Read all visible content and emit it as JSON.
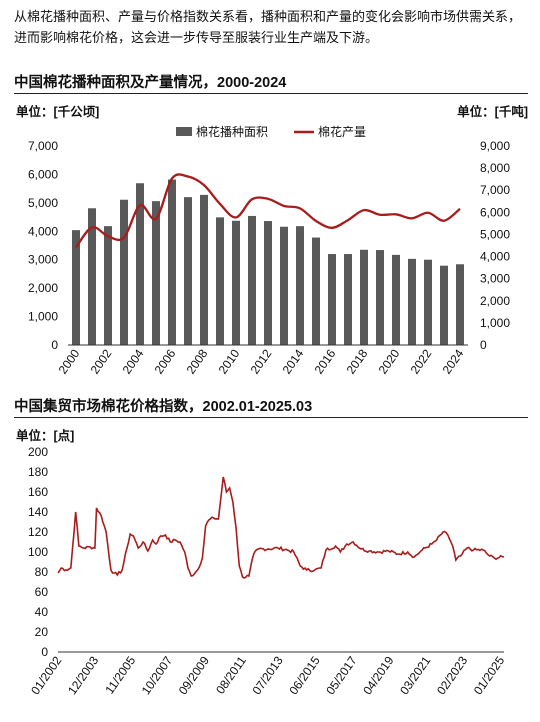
{
  "intro_text": "从棉花播种面积、产量与价格指数关系看，播种面积和产量的变化会影响市场供需关系，进而影响棉花价格，这会进一步传导至服装行业生产端及下游。",
  "chart1": {
    "title": "中国棉花播种面积及产量情况，2000-2024",
    "unit_left": "单位：[千公顷]",
    "unit_right": "单位：[千吨]"
  },
  "chart2": {
    "title": "中国集贸市场棉花价格指数，2002.01-2025.03",
    "unit_left": "单位：[点]"
  },
  "chart_data": [
    {
      "type": "bar",
      "categories": [
        "2000",
        "2001",
        "2002",
        "2003",
        "2004",
        "2005",
        "2006",
        "2007",
        "2008",
        "2009",
        "2010",
        "2011",
        "2012",
        "2013",
        "2014",
        "2015",
        "2016",
        "2017",
        "2018",
        "2019",
        "2020",
        "2021",
        "2022",
        "2023",
        "2024"
      ],
      "x_tick_labels": [
        "2000",
        "2002",
        "2004",
        "2006",
        "2008",
        "2010",
        "2012",
        "2014",
        "2016",
        "2018",
        "2020",
        "2022",
        "2024"
      ],
      "series": [
        {
          "name": "棉花播种面积",
          "type": "bar",
          "axis": "left",
          "color": "#595959",
          "values": [
            4040,
            4810,
            4180,
            5110,
            5690,
            5060,
            5820,
            5200,
            5280,
            4490,
            4370,
            4540,
            4360,
            4160,
            4180,
            3780,
            3200,
            3200,
            3350,
            3340,
            3170,
            3030,
            3000,
            2790,
            2840
          ]
        },
        {
          "name": "棉花产量",
          "type": "line",
          "axis": "right",
          "color": "#a81c1c",
          "values": [
            4420,
            5320,
            4920,
            4860,
            6320,
            5710,
            7530,
            7620,
            7230,
            6380,
            5770,
            6590,
            6610,
            6290,
            6180,
            5610,
            5300,
            5650,
            6100,
            5890,
            5910,
            5730,
            5980,
            5620,
            6160
          ]
        }
      ],
      "y_left": {
        "min": 0,
        "max": 7000,
        "ticks": [
          "0",
          "1,000",
          "2,000",
          "3,000",
          "4,000",
          "5,000",
          "6,000",
          "7,000"
        ]
      },
      "y_right": {
        "min": 0,
        "max": 9000,
        "ticks": [
          "0",
          "1,000",
          "2,000",
          "3,000",
          "4,000",
          "5,000",
          "6,000",
          "7,000",
          "8,000",
          "9,000"
        ]
      },
      "legend_position": "top-center",
      "grid": false
    },
    {
      "type": "line",
      "x_start": "2002-01",
      "x_end": "2025-03",
      "x_tick_labels": [
        "01/2002",
        "12/2003",
        "11/2005",
        "10/2007",
        "09/2009",
        "08/2011",
        "07/2013",
        "06/2015",
        "05/2017",
        "04/2019",
        "03/2021",
        "02/2023",
        "01/2025"
      ],
      "y_min": 0,
      "y_max": 200,
      "y_ticks": [
        "0",
        "20",
        "40",
        "60",
        "80",
        "100",
        "120",
        "140",
        "160",
        "180",
        "200"
      ],
      "grid": false,
      "series": [
        {
          "name": "",
          "color": "#a81c1c",
          "points": [
            [
              "2002-01",
              79
            ],
            [
              "2002-03",
              84
            ],
            [
              "2002-06",
              82
            ],
            [
              "2002-09",
              84
            ],
            [
              "2002-12",
              140
            ],
            [
              "2003-02",
              106
            ],
            [
              "2003-05",
              104
            ],
            [
              "2003-09",
              105
            ],
            [
              "2003-12",
              104
            ],
            [
              "2004-01",
              144
            ],
            [
              "2004-04",
              136
            ],
            [
              "2004-07",
              120
            ],
            [
              "2004-10",
              82
            ],
            [
              "2004-12",
              79
            ],
            [
              "2005-02",
              77
            ],
            [
              "2005-05",
              82
            ],
            [
              "2005-08",
              104
            ],
            [
              "2005-10",
              118
            ],
            [
              "2005-12",
              116
            ],
            [
              "2006-03",
              104
            ],
            [
              "2006-06",
              110
            ],
            [
              "2006-09",
              101
            ],
            [
              "2006-12",
              112
            ],
            [
              "2007-02",
              108
            ],
            [
              "2007-05",
              116
            ],
            [
              "2007-08",
              117
            ],
            [
              "2007-11",
              110
            ],
            [
              "2008-02",
              112
            ],
            [
              "2008-05",
              110
            ],
            [
              "2008-08",
              100
            ],
            [
              "2008-10",
              84
            ],
            [
              "2008-12",
              76
            ],
            [
              "2009-04",
              82
            ],
            [
              "2009-07",
              94
            ],
            [
              "2009-09",
              126
            ],
            [
              "2009-11",
              132
            ],
            [
              "2010-02",
              134
            ],
            [
              "2010-05",
              133
            ],
            [
              "2010-08",
              175
            ],
            [
              "2010-10",
              160
            ],
            [
              "2010-12",
              164
            ],
            [
              "2011-02",
              150
            ],
            [
              "2011-04",
              124
            ],
            [
              "2011-06",
              86
            ],
            [
              "2011-08",
              75
            ],
            [
              "2011-12",
              76
            ],
            [
              "2012-03",
              98
            ],
            [
              "2012-06",
              103
            ],
            [
              "2012-12",
              103
            ],
            [
              "2013-06",
              104
            ],
            [
              "2013-12",
              102
            ],
            [
              "2014-04",
              100
            ],
            [
              "2014-08",
              86
            ],
            [
              "2014-12",
              82
            ],
            [
              "2015-05",
              82
            ],
            [
              "2015-09",
              84
            ],
            [
              "2015-12",
              102
            ],
            [
              "2016-06",
              106
            ],
            [
              "2016-09",
              100
            ],
            [
              "2017-01",
              108
            ],
            [
              "2017-05",
              110
            ],
            [
              "2017-10",
              103
            ],
            [
              "2018-03",
              101
            ],
            [
              "2018-09",
              100
            ],
            [
              "2019-03",
              101
            ],
            [
              "2019-09",
              98
            ],
            [
              "2020-03",
              100
            ],
            [
              "2020-07",
              95
            ],
            [
              "2020-12",
              102
            ],
            [
              "2021-06",
              108
            ],
            [
              "2021-09",
              112
            ],
            [
              "2022-01",
              120
            ],
            [
              "2022-04",
              117
            ],
            [
              "2022-07",
              106
            ],
            [
              "2022-09",
              92
            ],
            [
              "2022-12",
              96
            ],
            [
              "2023-04",
              104
            ],
            [
              "2023-08",
              102
            ],
            [
              "2024-02",
              102
            ],
            [
              "2024-06",
              96
            ],
            [
              "2024-09",
              94
            ],
            [
              "2025-03",
              95
            ]
          ]
        }
      ]
    }
  ]
}
